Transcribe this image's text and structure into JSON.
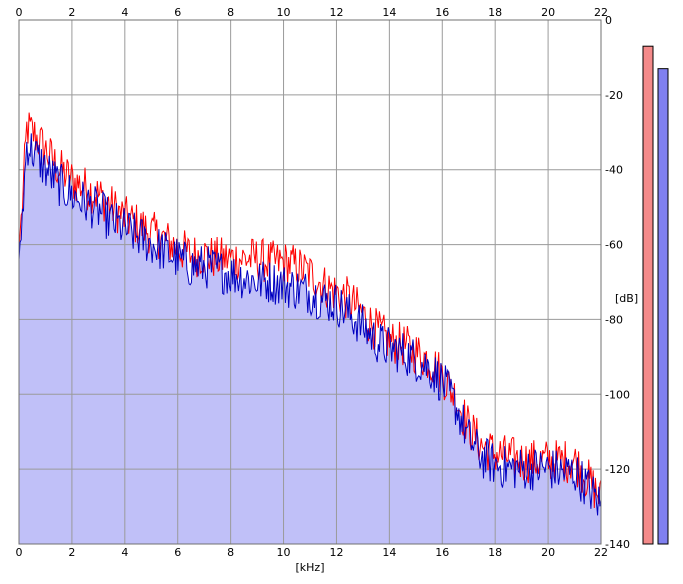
{
  "chart_data": {
    "type": "area",
    "xlabel": "[kHz]",
    "ylabel": "[dB]",
    "xlim": [
      0,
      22
    ],
    "ylim": [
      -140,
      0
    ],
    "x_ticks": [
      "0",
      "2",
      "4",
      "6",
      "8",
      "10",
      "12",
      "14",
      "16",
      "18",
      "20",
      "22"
    ],
    "y_ticks": [
      "0",
      "-20",
      "-40",
      "-60",
      "-80",
      "-100",
      "-120",
      "-140"
    ],
    "grid": true,
    "colors": {
      "red_series": "#ff0000",
      "blue_series": "#0000c0",
      "fill": "#c0c0f8",
      "red_meter": "#f48a8a",
      "blue_meter": "#8080f0"
    },
    "series": [
      {
        "color": "red",
        "x": [
          0.0,
          0.3,
          0.6,
          1.0,
          1.5,
          2.0,
          2.5,
          3.0,
          3.5,
          4.0,
          4.5,
          5.0,
          5.5,
          6.0,
          6.5,
          7.0,
          7.5,
          8.0,
          8.5,
          9.0,
          9.5,
          10.0,
          10.5,
          11.0,
          11.5,
          12.0,
          12.5,
          13.0,
          13.5,
          14.0,
          14.5,
          15.0,
          15.5,
          16.0,
          16.5,
          17.0,
          17.5,
          18.0,
          18.5,
          19.0,
          19.5,
          20.0,
          20.5,
          21.0,
          21.5,
          22.0
        ],
        "y": [
          -62,
          -27,
          -29,
          -33,
          -38,
          -41,
          -43,
          -45,
          -48,
          -51,
          -53,
          -55,
          -57,
          -59,
          -61,
          -61,
          -62,
          -62,
          -62,
          -62,
          -63,
          -63,
          -64,
          -66,
          -69,
          -71,
          -73,
          -77,
          -81,
          -84,
          -85,
          -87,
          -89,
          -93,
          -99,
          -107,
          -112,
          -114,
          -115,
          -116,
          -116,
          -116,
          -116,
          -116,
          -121,
          -126
        ]
      },
      {
        "color": "blue",
        "x": [
          0.0,
          0.3,
          0.6,
          1.0,
          1.5,
          2.0,
          2.5,
          3.0,
          3.5,
          4.0,
          4.5,
          5.0,
          5.5,
          6.0,
          6.5,
          7.0,
          7.5,
          8.0,
          8.5,
          9.0,
          9.5,
          10.0,
          10.5,
          11.0,
          11.5,
          12.0,
          12.5,
          13.0,
          13.5,
          14.0,
          14.5,
          15.0,
          15.5,
          16.0,
          16.5,
          17.0,
          17.5,
          18.0,
          18.5,
          19.0,
          19.5,
          20.0,
          20.5,
          21.0,
          21.5,
          22.0
        ],
        "y": [
          -64,
          -31,
          -34,
          -38,
          -42,
          -45,
          -47,
          -49,
          -52,
          -54,
          -56,
          -58,
          -60,
          -62,
          -64,
          -64,
          -65,
          -66,
          -67,
          -68,
          -68,
          -69,
          -70,
          -71,
          -73,
          -74,
          -77,
          -80,
          -84,
          -86,
          -87,
          -89,
          -91,
          -95,
          -101,
          -110,
          -115,
          -117,
          -118,
          -118,
          -118,
          -118,
          -119,
          -119,
          -123,
          -128
        ]
      }
    ],
    "meters": [
      {
        "color": "red",
        "value": -7
      },
      {
        "color": "blue",
        "value": -13
      }
    ]
  }
}
